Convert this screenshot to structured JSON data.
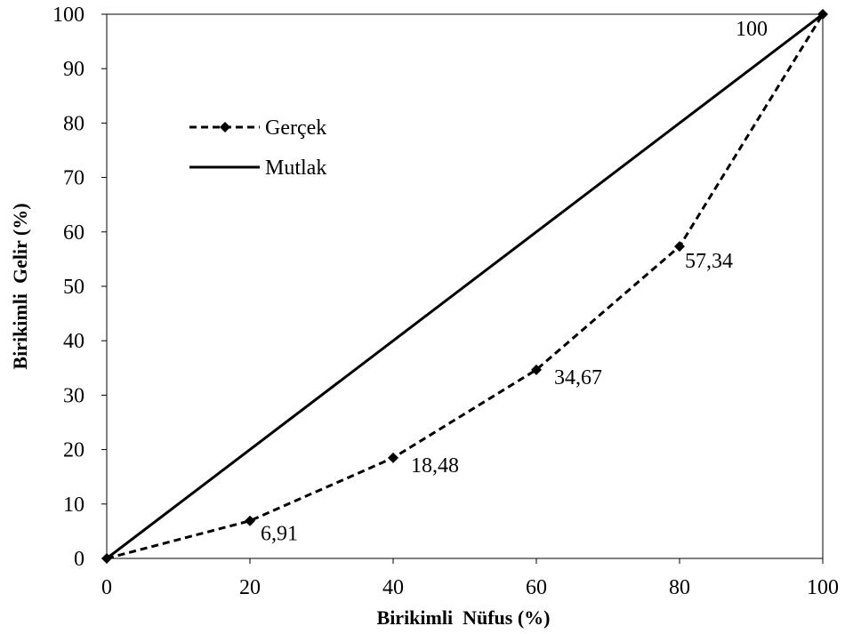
{
  "chart_data": {
    "type": "line",
    "xlabel": "Birikimli  Nüfus (%)",
    "ylabel": "Birikimli  Gelir (%)",
    "xlim": [
      0,
      100
    ],
    "ylim": [
      0,
      100
    ],
    "x_ticks": [
      "0",
      "20",
      "40",
      "60",
      "80",
      "100"
    ],
    "y_ticks": [
      "0",
      "10",
      "20",
      "30",
      "40",
      "50",
      "60",
      "70",
      "80",
      "90",
      "100"
    ],
    "grid": false,
    "legend_position": "upper-left",
    "series": [
      {
        "name": "Gerçek",
        "style": "dashed-with-markers",
        "color": "#000000",
        "x": [
          0,
          20,
          40,
          60,
          80,
          100
        ],
        "y": [
          0,
          6.91,
          18.48,
          34.67,
          57.34,
          100
        ],
        "labels": [
          "",
          "6,91",
          "18,48",
          "34,67",
          "57,34",
          "100"
        ]
      },
      {
        "name": "Mutlak",
        "style": "solid",
        "color": "#000000",
        "x": [
          0,
          100
        ],
        "y": [
          0,
          100
        ]
      }
    ]
  }
}
